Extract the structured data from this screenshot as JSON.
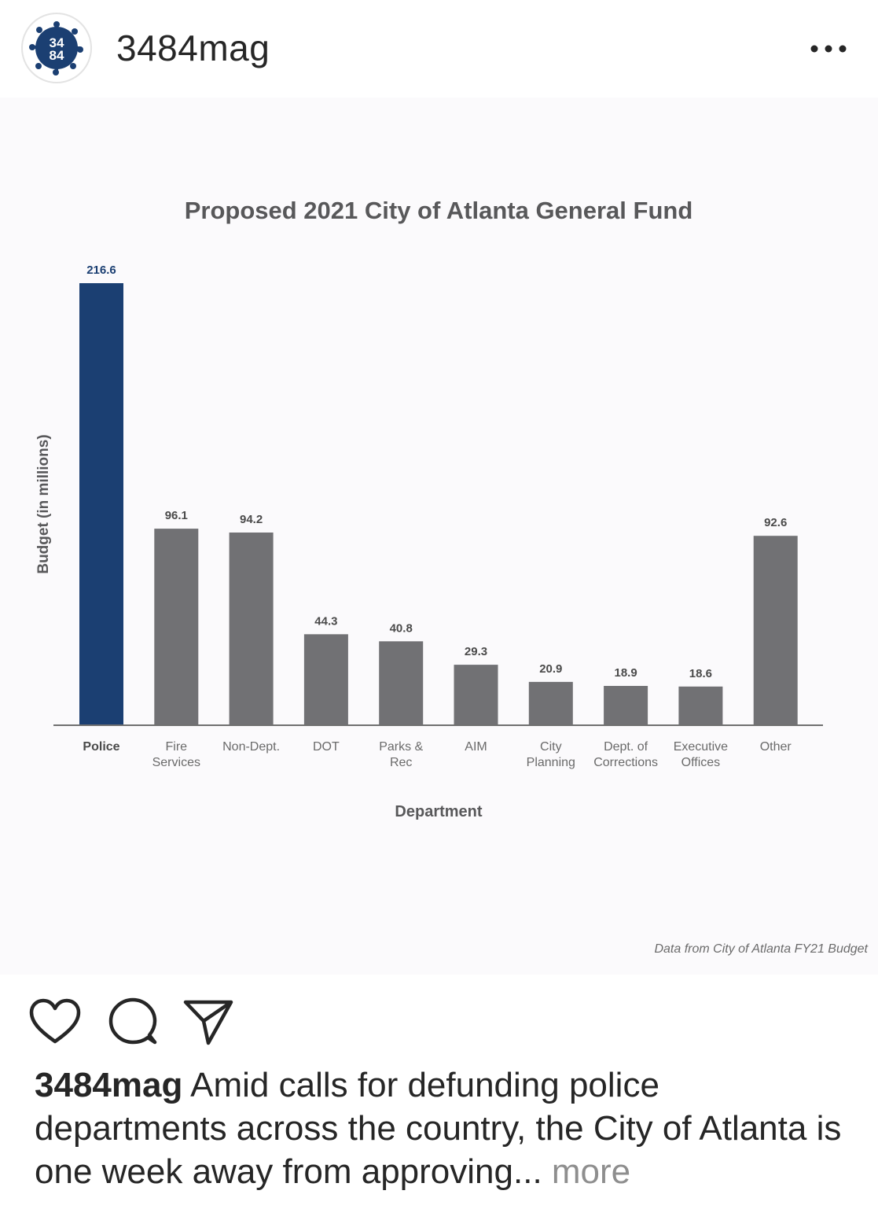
{
  "post": {
    "username": "3484mag",
    "avatar_line1": "34",
    "avatar_line2": "84",
    "caption_user": "3484mag",
    "caption_text": " Amid calls for defunding police departments across the country, the City of Atlanta is one week away from approving...",
    "caption_more": " more"
  },
  "icons": {
    "options": "more-horizontal-icon",
    "like": "heart-icon",
    "comment": "comment-bubble-icon",
    "share": "paper-plane-icon"
  },
  "colors": {
    "police_bar": "#1b3f72",
    "other_bars": "#717174",
    "avatar_splat": "#1b3f72"
  },
  "chart_data": {
    "type": "bar",
    "title": "Proposed 2021 City of Atlanta General Fund",
    "xlabel": "Department",
    "ylabel": "Budget (in millions)",
    "categories": [
      "Police",
      "Fire Services",
      "Non-Dept.",
      "DOT",
      "Parks & Rec",
      "AIM",
      "City Planning",
      "Dept. of Corrections",
      "Executive Offices",
      "Other"
    ],
    "category_lines": [
      [
        "Police"
      ],
      [
        "Fire",
        "Services"
      ],
      [
        "Non-Dept."
      ],
      [
        "DOT"
      ],
      [
        "Parks &",
        "Rec"
      ],
      [
        "AIM"
      ],
      [
        "City",
        "Planning"
      ],
      [
        "Dept. of",
        "Corrections"
      ],
      [
        "Executive",
        "Offices"
      ],
      [
        "Other"
      ]
    ],
    "values": [
      216.6,
      96.1,
      94.2,
      44.3,
      40.8,
      29.3,
      20.9,
      18.9,
      18.6,
      92.6
    ],
    "value_labels": [
      "216.6",
      "96.1",
      "94.2",
      "44.3",
      "40.8",
      "29.3",
      "20.9",
      "18.9",
      "18.6",
      "92.6"
    ],
    "highlight_index": 0,
    "ylim": [
      0,
      216.6
    ],
    "grid": false,
    "source_note": "Data from City of Atlanta FY21 Budget"
  }
}
